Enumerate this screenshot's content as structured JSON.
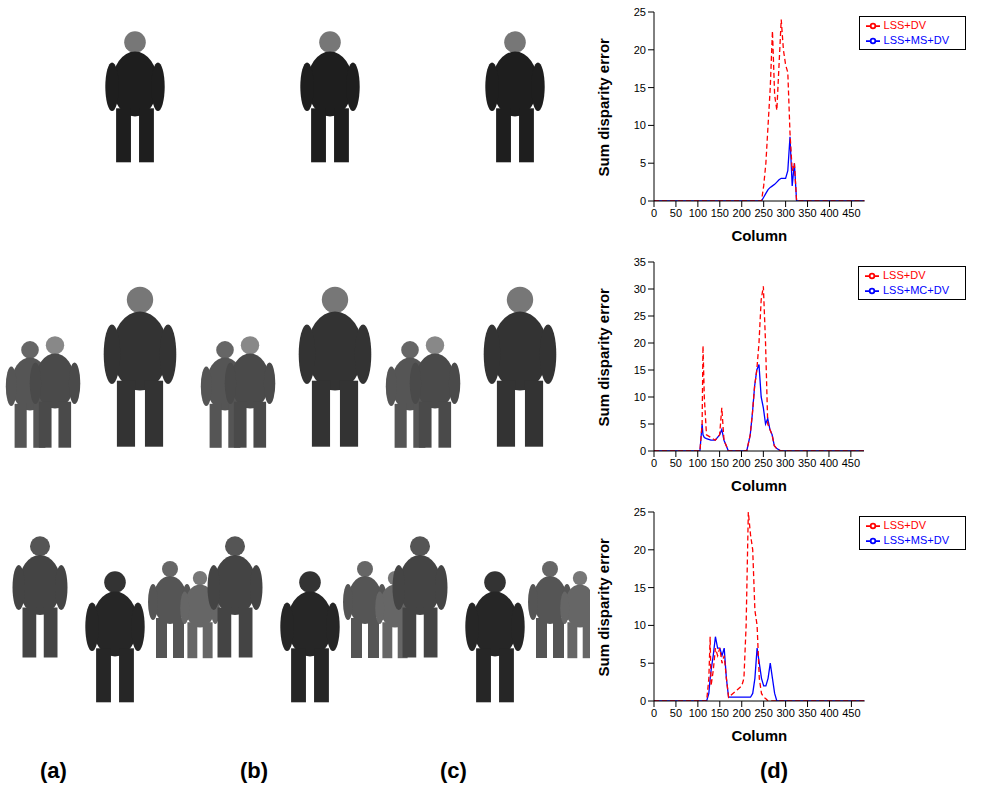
{
  "panel_labels": [
    "(a)",
    "(b)",
    "(c)",
    "(d)"
  ],
  "chart_data": [
    {
      "type": "line",
      "x_label": "Column",
      "y_label": "Sum disparity error",
      "xlim": [
        0,
        480
      ],
      "xticks": [
        0,
        50,
        100,
        150,
        200,
        250,
        300,
        350,
        400,
        450
      ],
      "ylim": [
        0,
        25
      ],
      "yticks": [
        0,
        5,
        10,
        15,
        20,
        25
      ],
      "legend": "upper right",
      "x": [
        0,
        245,
        250,
        255,
        260,
        265,
        270,
        275,
        280,
        285,
        290,
        295,
        300,
        305,
        310,
        315,
        320,
        325,
        330,
        480
      ],
      "series": [
        {
          "name": "LSS+MS+DV",
          "color": "#0000ff",
          "line_style": "solid",
          "values": [
            0,
            0,
            0.5,
            1,
            1.5,
            1.8,
            2,
            2.2,
            2.5,
            2.8,
            3,
            3,
            3,
            4,
            8.5,
            2,
            5,
            0,
            0,
            0
          ]
        },
        {
          "name": "LSS+DV",
          "color": "#ff0000",
          "line_style": "dashed",
          "values": [
            0,
            0,
            2,
            5,
            10,
            15,
            22.5,
            14,
            12,
            18,
            24,
            20,
            18,
            17,
            9,
            4,
            5,
            0,
            0,
            0
          ]
        }
      ]
    },
    {
      "type": "line",
      "x_label": "Column",
      "y_label": "Sum disparity error",
      "xlim": [
        0,
        480
      ],
      "xticks": [
        0,
        50,
        100,
        150,
        200,
        250,
        300,
        350,
        400,
        450
      ],
      "ylim": [
        0,
        35
      ],
      "yticks": [
        0,
        5,
        10,
        15,
        20,
        25,
        30,
        35
      ],
      "legend": "upper right",
      "x": [
        0,
        105,
        110,
        112,
        115,
        120,
        130,
        140,
        150,
        155,
        160,
        165,
        170,
        200,
        212,
        220,
        225,
        230,
        235,
        240,
        245,
        250,
        255,
        260,
        265,
        270,
        275,
        280,
        290,
        300,
        480
      ],
      "series": [
        {
          "name": "LSS+MC+DV",
          "color": "#0000ff",
          "line_style": "solid",
          "values": [
            0,
            0,
            5,
            3,
            2.5,
            2.3,
            2,
            2,
            3,
            4,
            2,
            1,
            0,
            0,
            0,
            3,
            7,
            12,
            15,
            16,
            10,
            8,
            5,
            6,
            4,
            3,
            1,
            0.5,
            0,
            0,
            0
          ]
        },
        {
          "name": "LSS+DV",
          "color": "#ff0000",
          "line_style": "dashed",
          "values": [
            0,
            0,
            5,
            19.5,
            10,
            3,
            2.5,
            2,
            3,
            8,
            2,
            1,
            0,
            0,
            0,
            3,
            7,
            12,
            15,
            20,
            28,
            30.5,
            20,
            5,
            4,
            3,
            1,
            0.5,
            0,
            0,
            0
          ]
        }
      ]
    },
    {
      "type": "line",
      "x_label": "Column",
      "y_label": "Sum disparity error",
      "xlim": [
        0,
        480
      ],
      "xticks": [
        0,
        50,
        100,
        150,
        200,
        250,
        300,
        350,
        400,
        450
      ],
      "ylim": [
        0,
        25
      ],
      "yticks": [
        0,
        5,
        10,
        15,
        20,
        25
      ],
      "legend": "upper right",
      "x": [
        0,
        120,
        125,
        128,
        130,
        135,
        140,
        145,
        150,
        155,
        160,
        165,
        170,
        180,
        190,
        200,
        205,
        210,
        215,
        220,
        225,
        230,
        235,
        240,
        245,
        250,
        255,
        260,
        265,
        270,
        275,
        280,
        480
      ],
      "series": [
        {
          "name": "LSS+MS+DV",
          "color": "#0000ff",
          "line_style": "solid",
          "values": [
            0,
            0,
            1,
            3,
            4,
            6,
            8.5,
            7,
            7,
            6,
            7,
            3,
            0.5,
            0.5,
            0.5,
            0.5,
            0.5,
            0.5,
            0.5,
            0.5,
            1,
            3,
            7,
            5,
            3,
            2,
            2,
            3,
            5,
            3,
            1,
            0,
            0
          ]
        },
        {
          "name": "LSS+DV",
          "color": "#ff0000",
          "line_style": "dashed",
          "values": [
            0,
            0,
            3,
            8.5,
            2,
            4,
            7,
            6,
            7,
            5,
            6,
            3,
            0.5,
            1,
            1.5,
            2,
            3,
            10,
            25,
            22,
            20,
            12,
            10,
            3,
            1,
            0.5,
            0.3,
            0,
            0,
            0,
            0,
            0,
            0
          ]
        }
      ]
    }
  ]
}
